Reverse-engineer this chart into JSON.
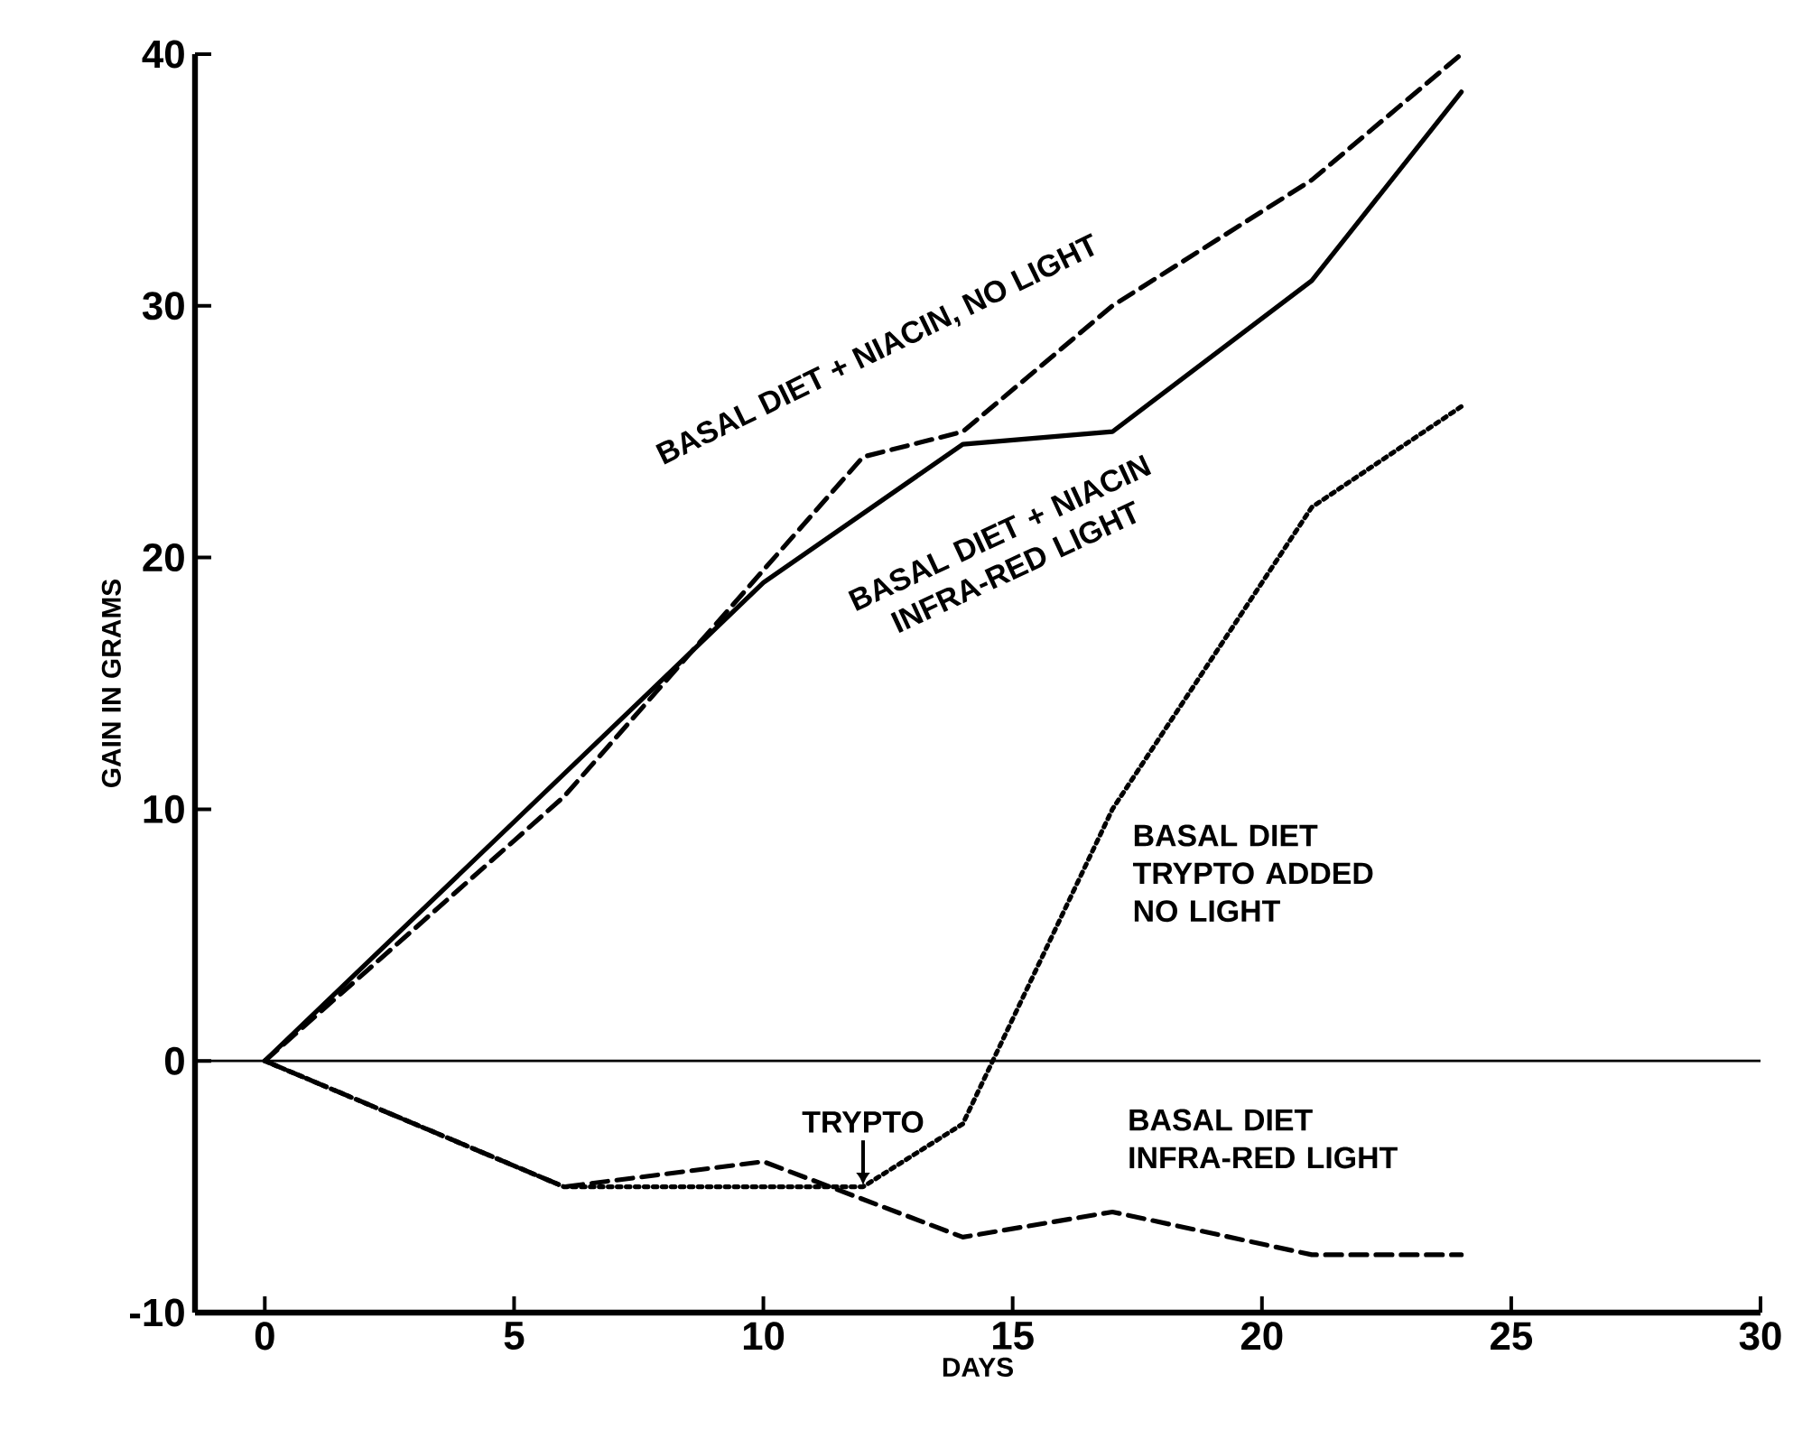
{
  "chart_data": {
    "type": "line",
    "xlabel": "DAYS",
    "ylabel": "GAIN IN GRAMS",
    "xlim": [
      -1.4,
      30
    ],
    "ylim": [
      -10,
      40
    ],
    "xticks": [
      0,
      5,
      10,
      15,
      20,
      25,
      30
    ],
    "yticks": [
      -10,
      0,
      10,
      20,
      30,
      40
    ],
    "grid": false,
    "marker": "none",
    "series": [
      {
        "name": "BASAL DIET + NIACIN, NO LIGHT",
        "color": "#000000",
        "line_style": "dashed",
        "x": [
          0,
          6,
          12,
          14,
          17,
          21,
          24
        ],
        "values": [
          0,
          10.5,
          24,
          25,
          30,
          35,
          40
        ]
      },
      {
        "name": "BASAL DIET + NIACIN INFRA-RED LIGHT",
        "color": "#000000",
        "line_style": "solid",
        "x": [
          0,
          10,
          14,
          17,
          21,
          24
        ],
        "values": [
          0,
          19,
          24.5,
          25,
          31,
          38.5
        ]
      },
      {
        "name": "BASAL DIET TRYPTO ADDED NO LIGHT",
        "color": "#000000",
        "line_style": "dotted",
        "x": [
          0,
          6,
          12,
          14,
          17,
          21,
          24
        ],
        "values": [
          0,
          -5,
          -5,
          -2.5,
          10,
          22,
          26
        ]
      },
      {
        "name": "BASAL DIET INFRA-RED LIGHT",
        "color": "#000000",
        "line_style": "dashed",
        "x": [
          0,
          6,
          10,
          12,
          14,
          17,
          21,
          24
        ],
        "values": [
          0,
          -5,
          -4,
          -5.5,
          -7,
          -6,
          -7.7,
          -7.7
        ]
      }
    ],
    "ref_lines": [
      {
        "axis": "y",
        "value": 0,
        "color": "#000000",
        "line_style": "solid"
      }
    ],
    "annotations": [
      {
        "text": "TRYPTO",
        "x": 12,
        "y": -5.3
      }
    ]
  }
}
